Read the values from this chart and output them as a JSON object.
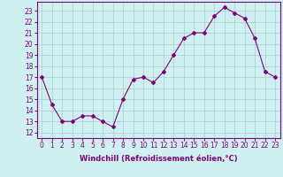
{
  "x": [
    0,
    1,
    2,
    3,
    4,
    5,
    6,
    7,
    8,
    9,
    10,
    11,
    12,
    13,
    14,
    15,
    16,
    17,
    18,
    19,
    20,
    21,
    22,
    23
  ],
  "y": [
    17.0,
    14.5,
    13.0,
    13.0,
    13.5,
    13.5,
    13.0,
    12.5,
    15.0,
    16.8,
    17.0,
    16.5,
    17.5,
    19.0,
    20.5,
    21.0,
    21.0,
    22.5,
    23.3,
    22.8,
    22.3,
    20.5,
    17.5,
    17.0
  ],
  "line_color": "#800080",
  "marker": "D",
  "marker_size": 2,
  "line_width": 0.8,
  "bg_color": "#cff0f0",
  "grid_color": "#aacccc",
  "xlabel": "Windchill (Refroidissement éolien,°C)",
  "xlabel_fontsize": 6,
  "xlabel_color": "#800080",
  "ylabel_ticks": [
    12,
    13,
    14,
    15,
    16,
    17,
    18,
    19,
    20,
    21,
    22,
    23
  ],
  "xticks": [
    0,
    1,
    2,
    3,
    4,
    5,
    6,
    7,
    8,
    9,
    10,
    11,
    12,
    13,
    14,
    15,
    16,
    17,
    18,
    19,
    20,
    21,
    22,
    23
  ],
  "ylim": [
    11.5,
    23.8
  ],
  "xlim": [
    -0.5,
    23.5
  ],
  "tick_color": "#800080",
  "tick_fontsize": 5.5
}
